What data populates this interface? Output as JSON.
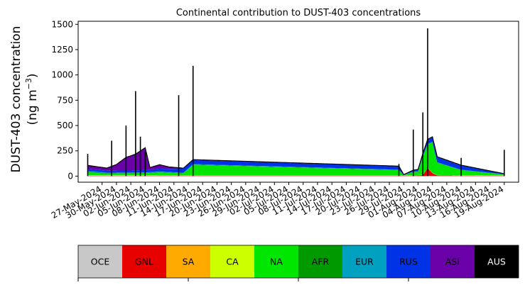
{
  "chart_data": {
    "type": "area",
    "stacked": true,
    "title": "Continental contribution to DUST-403 concentrations",
    "ylabel_line1": "DUST-403 concentration",
    "ylabel_line2": "(ng m",
    "ylabel_exp": "−3",
    "ylabel_close": ")",
    "xlabel": "",
    "x_range": [
      "2024-05-22",
      "2024-08-22"
    ],
    "ylim": [
      -60,
      1530
    ],
    "y_ticks": [
      0,
      250,
      500,
      750,
      1000,
      1250,
      1500
    ],
    "x_ticks": [
      "27-May-2024",
      "30-May-2024",
      "02-Jun-2024",
      "05-Jun-2024",
      "08-Jun-2024",
      "11-Jun-2024",
      "14-Jun-2024",
      "17-Jun-2024",
      "20-Jun-2024",
      "23-Jun-2024",
      "26-Jun-2024",
      "29-Jun-2024",
      "02-Jul-2024",
      "05-Jul-2024",
      "08-Jul-2024",
      "11-Jul-2024",
      "14-Jul-2024",
      "17-Jul-2024",
      "20-Jul-2024",
      "23-Jul-2024",
      "26-Jul-2024",
      "29-Jul-2024",
      "01-Aug-2024",
      "04-Aug-2024",
      "07-Aug-2024",
      "10-Aug-2024",
      "13-Aug-2024",
      "16-Aug-2024",
      "19-Aug-2024"
    ],
    "x_tick_dates": [
      "2024-05-27",
      "2024-05-30",
      "2024-06-02",
      "2024-06-05",
      "2024-06-08",
      "2024-06-11",
      "2024-06-14",
      "2024-06-17",
      "2024-06-20",
      "2024-06-23",
      "2024-06-26",
      "2024-06-29",
      "2024-07-02",
      "2024-07-05",
      "2024-07-08",
      "2024-07-11",
      "2024-07-14",
      "2024-07-17",
      "2024-07-20",
      "2024-07-23",
      "2024-07-26",
      "2024-07-29",
      "2024-08-01",
      "2024-08-04",
      "2024-08-07",
      "2024-08-10",
      "2024-08-13",
      "2024-08-16",
      "2024-08-19"
    ],
    "legend": [
      {
        "name": "OCE",
        "color": "#c8c8c8",
        "text_color": "#000000"
      },
      {
        "name": "GNL",
        "color": "#e60000",
        "text_color": "#000000"
      },
      {
        "name": "SA",
        "color": "#ffaa00",
        "text_color": "#000000"
      },
      {
        "name": "CA",
        "color": "#ccff00",
        "text_color": "#000000"
      },
      {
        "name": "NA",
        "color": "#00e600",
        "text_color": "#000000"
      },
      {
        "name": "AFR",
        "color": "#009a00",
        "text_color": "#000000"
      },
      {
        "name": "EUR",
        "color": "#00a0c0",
        "text_color": "#000000"
      },
      {
        "name": "RUS",
        "color": "#0032e6",
        "text_color": "#000000"
      },
      {
        "name": "ASI",
        "color": "#6a00a8",
        "text_color": "#000000"
      },
      {
        "name": "AUS",
        "color": "#000000",
        "text_color": "#ffffff"
      }
    ],
    "stack_series": [
      {
        "name": "GNL",
        "color": "#e60000",
        "points": [
          [
            "2024-05-24",
            3
          ],
          [
            "2024-06-15",
            3
          ],
          [
            "2024-07-29",
            3
          ],
          [
            "2024-08-02",
            10
          ],
          [
            "2024-08-03",
            80
          ],
          [
            "2024-08-04",
            30
          ],
          [
            "2024-08-05",
            8
          ],
          [
            "2024-08-10",
            5
          ],
          [
            "2024-08-19",
            3
          ]
        ]
      },
      {
        "name": "CA",
        "color": "#ccff00",
        "points": [
          [
            "2024-05-24",
            6
          ],
          [
            "2024-06-15",
            3
          ],
          [
            "2024-07-29",
            3
          ],
          [
            "2024-08-19",
            3
          ]
        ]
      },
      {
        "name": "NA",
        "color": "#00e600",
        "points": [
          [
            "2024-05-24",
            30
          ],
          [
            "2024-05-28",
            15
          ],
          [
            "2024-06-05",
            20
          ],
          [
            "2024-06-08",
            30
          ],
          [
            "2024-06-13",
            20
          ],
          [
            "2024-06-15",
            105
          ],
          [
            "2024-07-28",
            52
          ],
          [
            "2024-07-29",
            0
          ],
          [
            "2024-07-31",
            30
          ],
          [
            "2024-08-01",
            30
          ],
          [
            "2024-08-02",
            180
          ],
          [
            "2024-08-03",
            230
          ],
          [
            "2024-08-04",
            300
          ],
          [
            "2024-08-05",
            120
          ],
          [
            "2024-08-10",
            50
          ],
          [
            "2024-08-19",
            8
          ]
        ]
      },
      {
        "name": "AFR",
        "color": "#009a00",
        "points": [
          [
            "2024-05-24",
            6
          ],
          [
            "2024-06-15",
            3
          ],
          [
            "2024-08-19",
            3
          ]
        ]
      },
      {
        "name": "EUR",
        "color": "#00a0c0",
        "points": [
          [
            "2024-05-24",
            6
          ],
          [
            "2024-06-15",
            4
          ],
          [
            "2024-08-19",
            2
          ]
        ]
      },
      {
        "name": "RUS",
        "color": "#0032e6",
        "points": [
          [
            "2024-05-24",
            20
          ],
          [
            "2024-06-02",
            20
          ],
          [
            "2024-06-10",
            30
          ],
          [
            "2024-06-13",
            40
          ],
          [
            "2024-06-15",
            40
          ],
          [
            "2024-07-28",
            32
          ],
          [
            "2024-07-29",
            0
          ],
          [
            "2024-08-02",
            20
          ],
          [
            "2024-08-03",
            40
          ],
          [
            "2024-08-05",
            50
          ],
          [
            "2024-08-10",
            40
          ],
          [
            "2024-08-19",
            3
          ]
        ]
      },
      {
        "name": "ASI",
        "color": "#6a00a8",
        "points": [
          [
            "2024-05-24",
            35
          ],
          [
            "2024-05-28",
            25
          ],
          [
            "2024-05-30",
            60
          ],
          [
            "2024-06-01",
            130
          ],
          [
            "2024-06-03",
            160
          ],
          [
            "2024-06-05",
            220
          ],
          [
            "2024-06-06",
            20
          ],
          [
            "2024-06-08",
            40
          ],
          [
            "2024-06-10",
            20
          ],
          [
            "2024-06-13",
            5
          ],
          [
            "2024-06-15",
            5
          ],
          [
            "2024-07-28",
            3
          ],
          [
            "2024-08-02",
            5
          ],
          [
            "2024-08-10",
            5
          ],
          [
            "2024-08-19",
            2
          ]
        ]
      }
    ],
    "total_spikes": [
      {
        "date": "2024-05-24",
        "value": 220
      },
      {
        "date": "2024-05-29",
        "value": 350
      },
      {
        "date": "2024-06-01",
        "value": 500
      },
      {
        "date": "2024-06-03",
        "value": 840
      },
      {
        "date": "2024-06-04",
        "value": 390
      },
      {
        "date": "2024-06-05",
        "value": 240
      },
      {
        "date": "2024-06-12",
        "value": 800
      },
      {
        "date": "2024-06-15",
        "value": 1090
      },
      {
        "date": "2024-07-28",
        "value": 120
      },
      {
        "date": "2024-07-31",
        "value": 460
      },
      {
        "date": "2024-08-02",
        "value": 630
      },
      {
        "date": "2024-08-03",
        "value": 1460
      },
      {
        "date": "2024-08-10",
        "value": 180
      },
      {
        "date": "2024-08-19",
        "value": 260
      }
    ]
  }
}
